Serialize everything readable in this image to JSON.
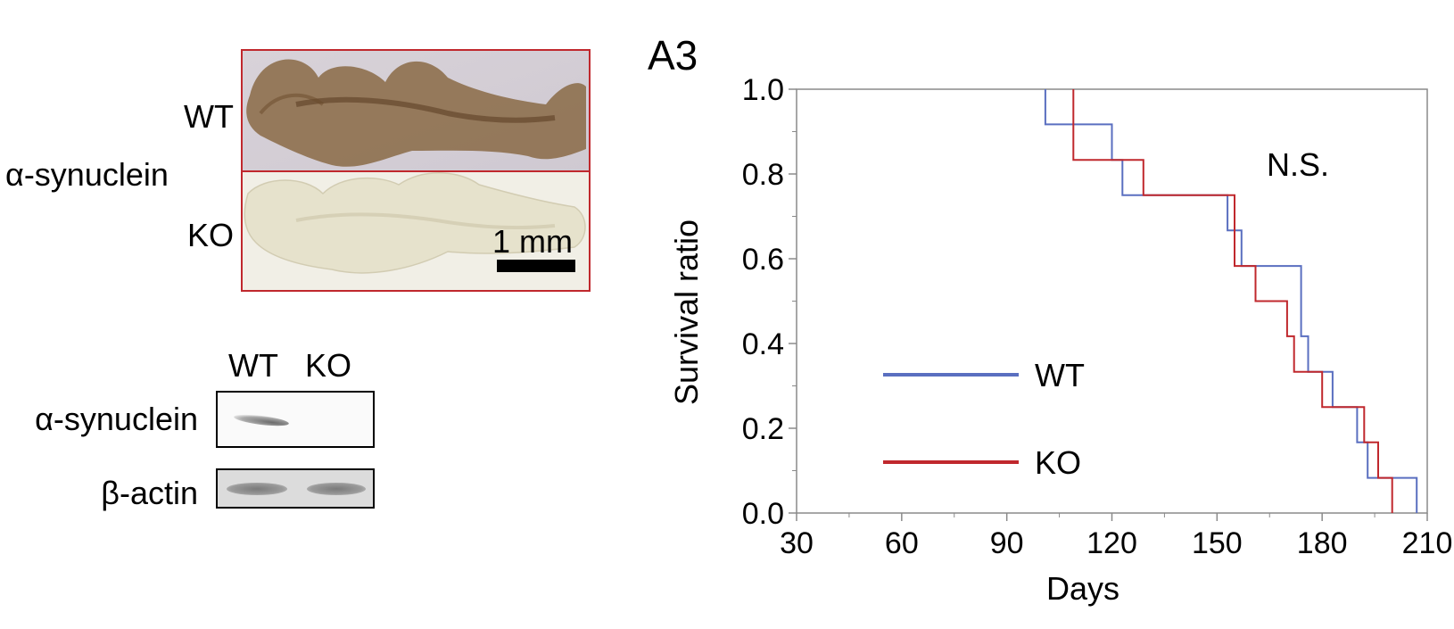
{
  "panel_a": {
    "histology": {
      "row_labels": [
        "WT",
        "KO"
      ],
      "stain_label": "α-synuclein",
      "scale_bar_label": "1 mm"
    },
    "western_blot": {
      "lane_labels": [
        "WT",
        "KO"
      ],
      "row_labels": [
        "α-synuclein",
        "β-actin"
      ]
    }
  },
  "colors": {
    "wt": "#5a6fc0",
    "ko": "#c0282d",
    "axis": "#8a8a8a",
    "frame": "#c0282d"
  },
  "chart_data": {
    "type": "line",
    "panel_label": "A3",
    "xlabel": "Days",
    "ylabel": "Survival ratio",
    "xlim": [
      30,
      210
    ],
    "ylim": [
      0,
      1
    ],
    "xticks": [
      "30",
      "60",
      "90",
      "120",
      "150",
      "180",
      "210"
    ],
    "yticks": [
      "0.0",
      "0.2",
      "0.4",
      "0.6",
      "0.8",
      "1.0"
    ],
    "annotation": "N.S.",
    "legend_position": "center-left",
    "series": [
      {
        "name": "WT",
        "step": true,
        "x": [
          101,
          101,
          120,
          120,
          123,
          123,
          153,
          153,
          157,
          157,
          174,
          174,
          176,
          176,
          183,
          183,
          190,
          190,
          193,
          193,
          207,
          207
        ],
        "y": [
          1.0,
          0.917,
          0.917,
          0.833,
          0.833,
          0.75,
          0.75,
          0.667,
          0.667,
          0.583,
          0.583,
          0.417,
          0.417,
          0.333,
          0.333,
          0.25,
          0.25,
          0.167,
          0.167,
          0.083,
          0.083,
          0.0
        ]
      },
      {
        "name": "KO",
        "step": true,
        "x": [
          109,
          109,
          129,
          129,
          155,
          155,
          161,
          161,
          170,
          170,
          172,
          172,
          180,
          180,
          192,
          192,
          196,
          196,
          200,
          200
        ],
        "y": [
          1.0,
          0.833,
          0.833,
          0.75,
          0.75,
          0.583,
          0.583,
          0.5,
          0.5,
          0.417,
          0.417,
          0.333,
          0.333,
          0.25,
          0.25,
          0.167,
          0.167,
          0.083,
          0.083,
          0.0
        ]
      }
    ]
  }
}
